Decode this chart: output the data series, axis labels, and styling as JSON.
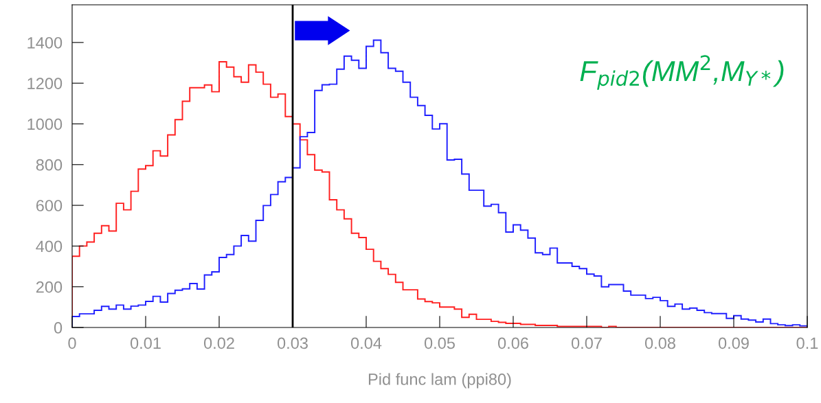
{
  "chart_data": {
    "type": "histogram",
    "xlabel": "Pid func lam (ppi80)",
    "bins": [
      0,
      0.001,
      0.002,
      0.003,
      0.004,
      0.005,
      0.006,
      0.007,
      0.008,
      0.009,
      0.01,
      0.011,
      0.012,
      0.013,
      0.014,
      0.015,
      0.016,
      0.017,
      0.018,
      0.019,
      0.02,
      0.021,
      0.022,
      0.023,
      0.024,
      0.025,
      0.026,
      0.027,
      0.028,
      0.029,
      0.03,
      0.031,
      0.032,
      0.033,
      0.034,
      0.035,
      0.036,
      0.037,
      0.038,
      0.039,
      0.04,
      0.041,
      0.042,
      0.043,
      0.044,
      0.045,
      0.046,
      0.047,
      0.048,
      0.049,
      0.05,
      0.051,
      0.052,
      0.053,
      0.054,
      0.055,
      0.056,
      0.057,
      0.058,
      0.059,
      0.06,
      0.061,
      0.062,
      0.063,
      0.064,
      0.065,
      0.066,
      0.067,
      0.068,
      0.069,
      0.07,
      0.071,
      0.072,
      0.073,
      0.074,
      0.075,
      0.076,
      0.077,
      0.078,
      0.079,
      0.08,
      0.081,
      0.082,
      0.083,
      0.084,
      0.085,
      0.086,
      0.087,
      0.088,
      0.089,
      0.09,
      0.091,
      0.092,
      0.093,
      0.094,
      0.095,
      0.096,
      0.097,
      0.098,
      0.099,
      0.1
    ],
    "series": [
      {
        "color": "#ff2020",
        "values": [
          350,
          400,
          420,
          463,
          500,
          474,
          610,
          578,
          669,
          778,
          795,
          868,
          842,
          946,
          1021,
          1111,
          1178,
          1178,
          1191,
          1158,
          1305,
          1279,
          1232,
          1205,
          1290,
          1254,
          1195,
          1131,
          1147,
          1036,
          1000,
          922,
          849,
          773,
          764,
          627,
          578,
          534,
          463,
          442,
          384,
          325,
          289,
          261,
          222,
          185,
          185,
          140,
          127,
          121,
          100,
          100,
          90,
          50,
          65,
          40,
          40,
          30,
          25,
          20,
          20,
          15,
          15,
          10,
          10,
          10,
          5,
          5,
          5,
          5,
          5,
          5,
          0,
          5,
          0,
          0,
          0,
          0,
          0,
          0,
          0,
          0,
          0,
          0,
          0,
          0,
          0,
          0,
          0,
          0,
          0,
          0,
          0,
          0,
          0,
          0,
          0,
          0,
          0,
          0
        ]
      },
      {
        "color": "#2020ff",
        "values": [
          54,
          67,
          67,
          84,
          104,
          90,
          110,
          90,
          105,
          110,
          128,
          153,
          125,
          167,
          183,
          190,
          216,
          189,
          258,
          273,
          344,
          358,
          400,
          452,
          424,
          526,
          599,
          653,
          716,
          737,
          784,
          937,
          958,
          1164,
          1192,
          1195,
          1269,
          1333,
          1313,
          1273,
          1381,
          1411,
          1350,
          1273,
          1259,
          1205,
          1131,
          1090,
          1042,
          975,
          1001,
          823,
          826,
          754,
          674,
          674,
          596,
          605,
          564,
          469,
          504,
          478,
          439,
          367,
          358,
          390,
          317,
          317,
          300,
          289,
          262,
          253,
          200,
          211,
          211,
          179,
          159,
          159,
          142,
          148,
          132,
          104,
          115,
          90,
          95,
          84,
          73,
          68,
          68,
          45,
          58,
          41,
          36,
          27,
          41,
          19,
          13,
          9,
          13,
          8
        ]
      }
    ],
    "xlim": [
      0,
      0.1
    ],
    "xticks": [
      0,
      0.01,
      0.02,
      0.03,
      0.04,
      0.05,
      0.06,
      0.07,
      0.08,
      0.09,
      0.1
    ],
    "ylim": [
      0,
      1585
    ],
    "yticks": [
      0,
      200,
      400,
      600,
      800,
      1000,
      1200,
      1400
    ],
    "ref_lines": [
      {
        "axis": "x",
        "value": 0.03,
        "color": "#000000"
      }
    ],
    "annotations": [
      "F$_{pid2}$(MM$^{2}$,M$_{Y*}$)"
    ],
    "grid": false,
    "legend": false
  }
}
